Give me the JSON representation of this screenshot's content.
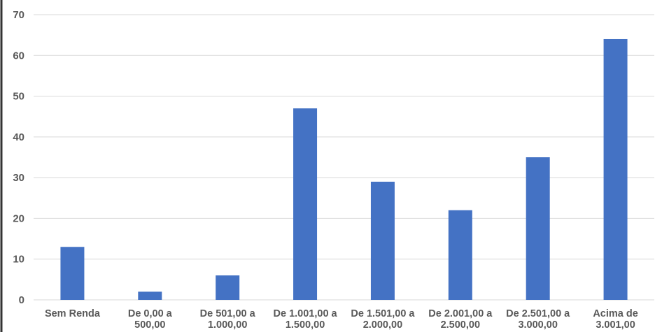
{
  "chart_data": {
    "type": "bar",
    "title": "",
    "xlabel": "",
    "ylabel": "",
    "categories": [
      [
        "Sem Renda"
      ],
      [
        "De 0,00 a",
        "500,00"
      ],
      [
        "De 501,00 a",
        "1.000,00"
      ],
      [
        "De 1.001,00 a",
        "1.500,00"
      ],
      [
        "De 1.501,00 a",
        "2.000,00"
      ],
      [
        "De 2.001,00 a",
        "2.500,00"
      ],
      [
        "De 2.501,00 a",
        "3.000,00"
      ],
      [
        "Acima de",
        "3.001,00"
      ]
    ],
    "values": [
      13,
      2,
      6,
      47,
      29,
      22,
      35,
      64
    ],
    "ylim": [
      0,
      70
    ],
    "yticks": [
      0,
      10,
      20,
      30,
      40,
      50,
      60,
      70
    ],
    "grid": true,
    "legend": "none",
    "colors": {
      "bar": "#4472c4",
      "grid": "#d9d9d9",
      "axis_line": "#333333",
      "text": "#595959"
    }
  }
}
